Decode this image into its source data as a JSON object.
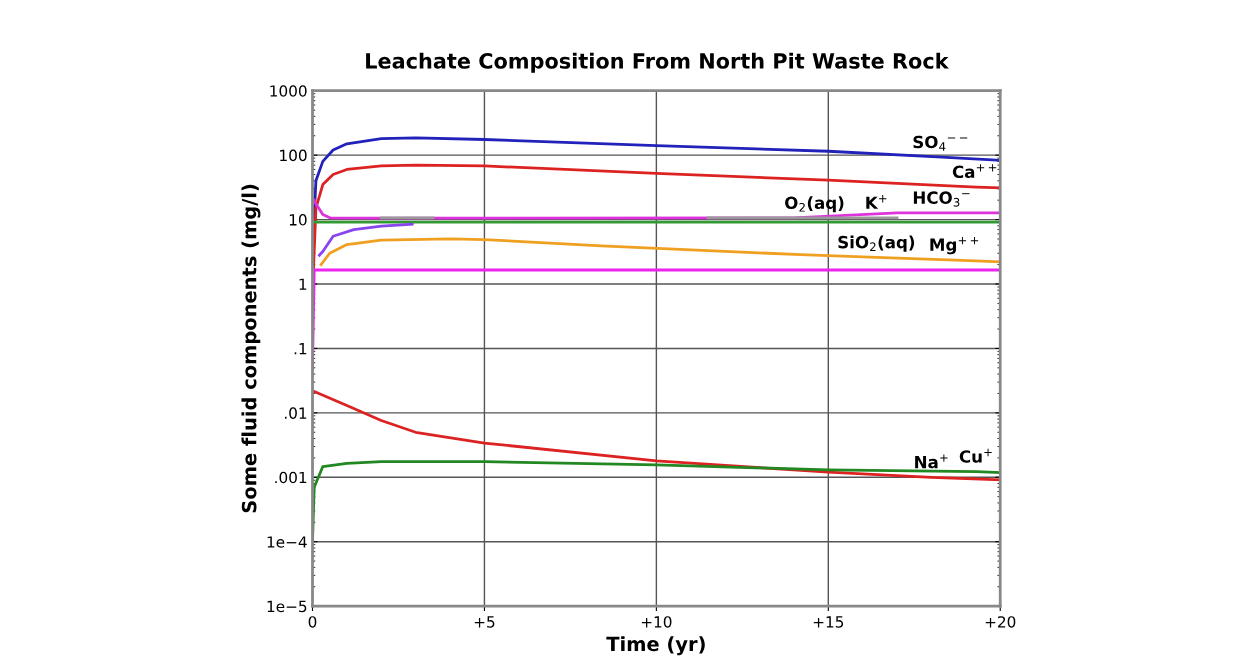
{
  "chart_data": {
    "type": "line",
    "title": "Leachate Composition From North Pit Waste Rock",
    "xlabel": "Time (yr)",
    "ylabel": "Some fluid components (mg/l)",
    "log": "y",
    "grid": true,
    "legend": false,
    "marker": "none",
    "line_style": "solid",
    "xlim": [
      0,
      20
    ],
    "xticks": [
      0,
      {
        "value": 5,
        "label": "+5"
      },
      {
        "value": 10,
        "label": "+10"
      },
      {
        "value": 15,
        "label": "+15"
      },
      {
        "value": 20,
        "label": "+20"
      }
    ],
    "ylim": [
      1e-05,
      1000
    ],
    "yticks": [
      {
        "value": 1e-05,
        "label": "1e−5"
      },
      {
        "value": 0.0001,
        "label": "1e−4"
      },
      {
        "value": 0.001,
        "label": ".001"
      },
      {
        "value": 0.01,
        "label": ".01"
      },
      {
        "value": 0.1,
        "label": ".1"
      },
      1,
      10,
      100,
      1000
    ],
    "series": [
      {
        "color": "#2222bb",
        "x": [
          0,
          0.1,
          0.3,
          0.6,
          1,
          2,
          3,
          5,
          10,
          15,
          18.3,
          20
        ],
        "values": [
          3,
          40,
          80,
          120,
          150,
          180,
          185,
          175,
          140,
          115,
          93,
          83
        ]
      },
      {
        "color": "#dd2222",
        "x": [
          0,
          0.1,
          0.3,
          0.6,
          1,
          2,
          3,
          5,
          10,
          15,
          19.3,
          20
        ],
        "values": [
          0.7,
          15,
          35,
          50,
          60,
          68,
          70,
          68,
          52,
          41,
          32,
          31
        ]
      },
      {
        "color": "#dd33dd",
        "x": [
          0.05,
          0.09,
          0.3,
          0.52,
          1,
          14,
          17,
          20
        ],
        "values": [
          20,
          18,
          12,
          10.6,
          10.5,
          10.6,
          12.7,
          12.7
        ]
      },
      {
        "color": "#999999",
        "x": [
          2,
          3.5
        ],
        "values": [
          10.6,
          10.6
        ]
      },
      {
        "color": "#999999",
        "x": [
          11.5,
          14.6,
          16.4,
          17
        ],
        "values": [
          10.6,
          10.6,
          10.6,
          10.6
        ]
      },
      {
        "color": "#339933",
        "x": [
          0.02,
          5,
          10,
          15,
          20
        ],
        "values": [
          9.1,
          9.1,
          9.1,
          9.1,
          9.1
        ]
      },
      {
        "color": "#8844ee",
        "x": [
          0.2,
          0.3,
          0.6,
          1.2,
          2,
          2.9
        ],
        "values": [
          2.8,
          3.2,
          5.5,
          7.0,
          7.9,
          8.5
        ]
      },
      {
        "color": "#f0a020",
        "x": [
          0.25,
          0.5,
          1,
          2,
          4,
          5,
          8.4,
          14.2,
          16.4,
          18.7,
          20
        ],
        "values": [
          2.0,
          3.0,
          4.1,
          4.8,
          5.0,
          4.9,
          3.9,
          2.85,
          2.6,
          2.35,
          2.2
        ]
      },
      {
        "color": "#ee22ee",
        "x": [
          0,
          0.05,
          5,
          10,
          15,
          20
        ],
        "values": [
          0.05,
          1.65,
          1.65,
          1.65,
          1.65,
          1.65
        ]
      },
      {
        "color": "#dd2222",
        "x": [
          0,
          1,
          2,
          3,
          5,
          10,
          15,
          18,
          20
        ],
        "values": [
          0.022,
          0.013,
          0.0076,
          0.005,
          0.0034,
          0.0018,
          0.0012,
          0.001,
          0.00091
        ]
      },
      {
        "color": "#228822",
        "x": [
          0,
          0.05,
          0.3,
          1,
          2,
          5,
          10,
          15,
          19.3,
          20
        ],
        "values": [
          0.0001,
          0.0007,
          0.00147,
          0.00165,
          0.00175,
          0.00175,
          0.00156,
          0.0013,
          0.00122,
          0.00118
        ]
      }
    ],
    "annotations": [
      {
        "text": "SO$_{4}$$^{−−}$",
        "x": 18.3,
        "y": 93
      },
      {
        "text": "Ca$^{++}$",
        "x": 19.3,
        "y": 32
      },
      {
        "text": "O$_{2}$(aq)",
        "x": 14.6,
        "y": 10.6
      },
      {
        "text": "K$^{+}$",
        "x": 16.4,
        "y": 10.6
      },
      {
        "text": "HCO$_{3}$$^{−}$",
        "x": 18.3,
        "y": 12.7
      },
      {
        "text": "SiO$_{2}$(aq)",
        "x": 16.4,
        "y": 2.6
      },
      {
        "text": "Mg$^{++}$",
        "x": 18.7,
        "y": 2.35
      },
      {
        "text": "Na$^{+}$",
        "x": 18.0,
        "y": 0.001
      },
      {
        "text": "Cu$^{+}$",
        "x": 19.3,
        "y": 0.00122
      }
    ]
  }
}
